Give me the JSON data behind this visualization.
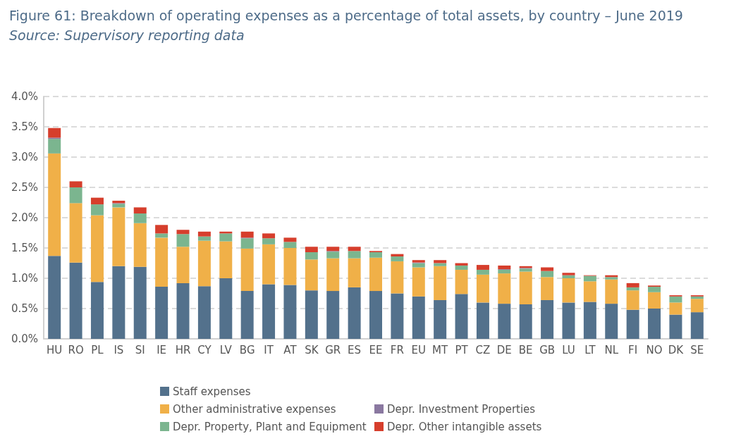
{
  "chart_data": {
    "type": "bar",
    "title": "Figure 61: Breakdown of operating expenses as a percentage of total assets, by country – June 2019",
    "subtitle": "Source: Supervisory reporting data",
    "categories": [
      "HU",
      "RO",
      "PL",
      "IS",
      "SI",
      "IE",
      "HR",
      "CY",
      "LV",
      "BG",
      "IT",
      "AT",
      "SK",
      "GR",
      "ES",
      "EE",
      "FR",
      "EU",
      "MT",
      "PT",
      "CZ",
      "DE",
      "BE",
      "GB",
      "LU",
      "LT",
      "NL",
      "FI",
      "NO",
      "DK",
      "SE"
    ],
    "stacked": true,
    "series": [
      {
        "name": "Staff expenses",
        "color": "#53718c",
        "values": [
          1.37,
          1.26,
          0.94,
          1.2,
          1.19,
          0.86,
          0.92,
          0.87,
          1.0,
          0.79,
          0.9,
          0.89,
          0.8,
          0.79,
          0.85,
          0.79,
          0.75,
          0.7,
          0.64,
          0.74,
          0.6,
          0.58,
          0.57,
          0.64,
          0.6,
          0.61,
          0.58,
          0.48,
          0.5,
          0.4,
          0.44
        ]
      },
      {
        "name": "Other administrative expenses",
        "color": "#f0b048",
        "values": [
          1.69,
          0.98,
          1.1,
          0.97,
          0.72,
          0.81,
          0.6,
          0.75,
          0.61,
          0.7,
          0.66,
          0.61,
          0.51,
          0.54,
          0.48,
          0.55,
          0.53,
          0.48,
          0.56,
          0.4,
          0.46,
          0.5,
          0.54,
          0.38,
          0.4,
          0.34,
          0.4,
          0.32,
          0.27,
          0.2,
          0.22
        ]
      },
      {
        "name": "Depr. Property, Plant and Equipment",
        "color": "#7bb58f",
        "values": [
          0.24,
          0.26,
          0.18,
          0.06,
          0.16,
          0.07,
          0.21,
          0.07,
          0.13,
          0.17,
          0.1,
          0.1,
          0.12,
          0.11,
          0.12,
          0.09,
          0.08,
          0.07,
          0.05,
          0.07,
          0.08,
          0.06,
          0.05,
          0.1,
          0.05,
          0.09,
          0.04,
          0.05,
          0.09,
          0.1,
          0.04
        ]
      },
      {
        "name": "Depr. Investment Properties",
        "color": "#8a78a0",
        "values": [
          0.02,
          0,
          0,
          0.01,
          0,
          0,
          0,
          0,
          0,
          0.01,
          0,
          0,
          0,
          0.01,
          0,
          0,
          0,
          0.01,
          0,
          0,
          0,
          0.01,
          0.01,
          0,
          0,
          0,
          0,
          0,
          0,
          0,
          0
        ]
      },
      {
        "name": "Depr. Other intangible assets",
        "color": "#d63e2c",
        "values": [
          0.16,
          0.1,
          0.11,
          0.04,
          0.1,
          0.14,
          0.07,
          0.08,
          0.03,
          0.1,
          0.08,
          0.07,
          0.09,
          0.07,
          0.07,
          0.02,
          0.04,
          0.04,
          0.05,
          0.04,
          0.08,
          0.06,
          0.03,
          0.06,
          0.04,
          0.01,
          0.03,
          0.07,
          0.02,
          0.02,
          0.02
        ]
      }
    ],
    "ylim": [
      0,
      4
    ],
    "yticks": [
      {
        "value": 0,
        "label": "0.0%"
      },
      {
        "value": 0.5,
        "label": "0.5%"
      },
      {
        "value": 1,
        "label": "1.0%"
      },
      {
        "value": 1.5,
        "label": "1.5%"
      },
      {
        "value": 2,
        "label": "2.0%"
      },
      {
        "value": 2.5,
        "label": "2.5%"
      },
      {
        "value": 3,
        "label": "3.0%"
      },
      {
        "value": 3.5,
        "label": "3.5%"
      },
      {
        "value": 4,
        "label": "4.0%"
      }
    ],
    "grid": "y",
    "legend": "bottom"
  }
}
